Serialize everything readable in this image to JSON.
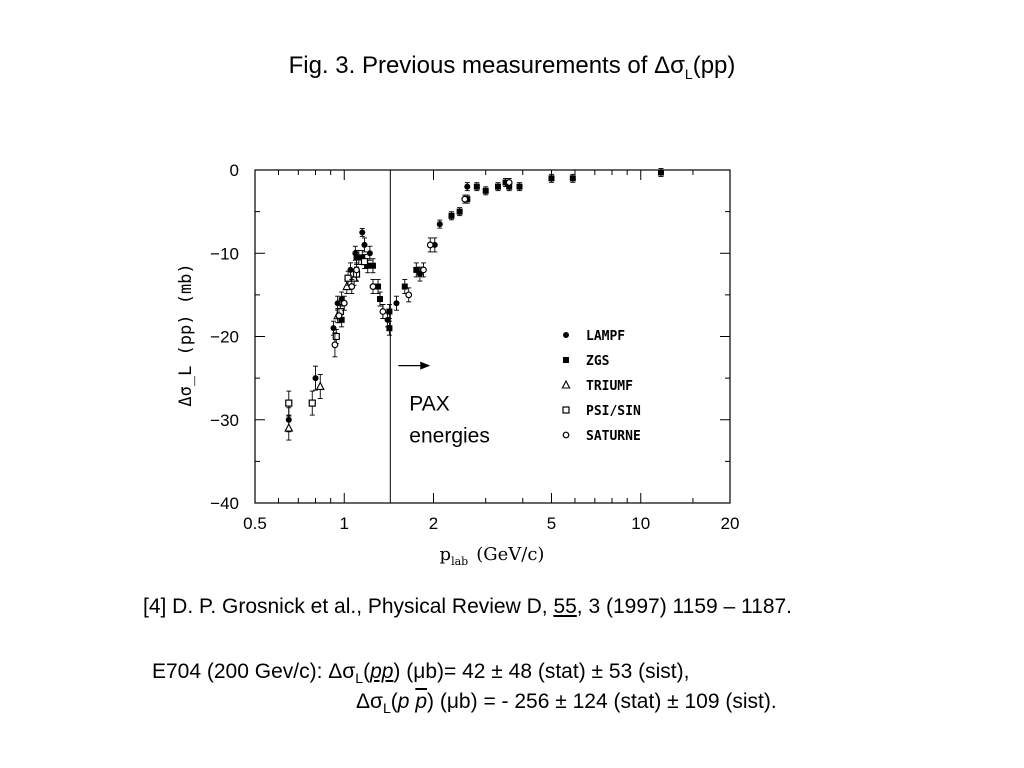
{
  "slide": {
    "title_prefix": "Fig. 3. Previous measurements of ",
    "title_symbol": "Δσ",
    "title_sub": "L",
    "title_suffix": "(pp)"
  },
  "chart_data": {
    "type": "scatter",
    "xscale": "log",
    "xlim": [
      0.5,
      20
    ],
    "ylim": [
      -40,
      0
    ],
    "xticks": [
      0.5,
      1,
      2,
      5,
      10,
      20
    ],
    "xtick_labels": [
      "0.5",
      "1",
      "2",
      "5",
      "10",
      "20"
    ],
    "yticks": [
      0,
      -10,
      -20,
      -30,
      -40
    ],
    "ytick_labels": [
      "0",
      "−10",
      "−20",
      "−30",
      "−40"
    ],
    "xlabel_main": "p",
    "xlabel_sub": "lab",
    "xlabel_unit": "(GeV/c)",
    "ylabel": "Δσ_L (pp)   (mb)",
    "grid": false,
    "legend_position": "right-inside",
    "annotation": {
      "x": 1.43,
      "arrow_to": 1.95,
      "arrow_y": -23.5,
      "line1": "PAX",
      "line2": "energies"
    },
    "series": [
      {
        "name": "LAMPF",
        "marker": "filled-circle",
        "points": [
          [
            0.65,
            -30
          ],
          [
            0.8,
            -25
          ],
          [
            0.92,
            -19
          ],
          [
            0.95,
            -16
          ],
          [
            0.98,
            -15.5
          ],
          [
            1.05,
            -12
          ],
          [
            1.09,
            -10
          ],
          [
            1.12,
            -10.5
          ],
          [
            1.15,
            -7.5
          ],
          [
            1.17,
            -9
          ],
          [
            1.22,
            -10
          ],
          [
            1.35,
            -17
          ],
          [
            1.4,
            -18
          ],
          [
            1.5,
            -16
          ],
          [
            1.8,
            -12.5
          ],
          [
            2.02,
            -9
          ],
          [
            2.1,
            -6.5
          ],
          [
            2.6,
            -2
          ]
        ]
      },
      {
        "name": "ZGS",
        "marker": "filled-square",
        "points": [
          [
            0.98,
            -18
          ],
          [
            1.1,
            -10.5
          ],
          [
            1.15,
            -10.5
          ],
          [
            1.2,
            -11.5
          ],
          [
            1.25,
            -11.5
          ],
          [
            1.3,
            -14
          ],
          [
            1.32,
            -15.5
          ],
          [
            1.42,
            -17
          ],
          [
            1.42,
            -19
          ],
          [
            1.6,
            -14
          ],
          [
            1.75,
            -12
          ],
          [
            2.3,
            -5.5
          ],
          [
            2.45,
            -5
          ],
          [
            2.6,
            -3.5
          ],
          [
            2.8,
            -2
          ],
          [
            3.0,
            -2.5
          ],
          [
            3.3,
            -2
          ],
          [
            3.5,
            -1.5
          ],
          [
            3.6,
            -2
          ],
          [
            3.9,
            -2
          ],
          [
            5.0,
            -1
          ],
          [
            5.9,
            -1
          ],
          [
            11.7,
            -0.3
          ]
        ]
      },
      {
        "name": "TRIUMF",
        "marker": "open-triangle",
        "points": [
          [
            0.65,
            -31
          ],
          [
            0.83,
            -26
          ],
          [
            0.95,
            -17.5
          ],
          [
            1.02,
            -14
          ],
          [
            1.08,
            -13
          ]
        ]
      },
      {
        "name": "PSI/SIN",
        "marker": "open-square",
        "points": [
          [
            0.65,
            -28
          ],
          [
            0.78,
            -28
          ],
          [
            0.94,
            -20
          ],
          [
            0.97,
            -17
          ],
          [
            1.03,
            -13
          ],
          [
            1.1,
            -12.5
          ],
          [
            1.17,
            -11
          ]
        ]
      },
      {
        "name": "SATURNE",
        "marker": "open-circle",
        "points": [
          [
            0.93,
            -21
          ],
          [
            0.96,
            -17.5
          ],
          [
            1.0,
            -16
          ],
          [
            1.06,
            -14
          ],
          [
            1.1,
            -12
          ],
          [
            1.25,
            -14
          ],
          [
            1.35,
            -17
          ],
          [
            1.65,
            -15
          ],
          [
            1.85,
            -12
          ],
          [
            1.95,
            -9
          ],
          [
            2.55,
            -3.5
          ],
          [
            3.6,
            -1.5
          ]
        ]
      }
    ]
  },
  "reference": {
    "prefix": "[4] D. P. Grosnick et al., Physical Review D, ",
    "volume": "55",
    "suffix": ", 3 (1997) 1159 – 1187."
  },
  "e704": {
    "line1_a": "E704 (200 Gev/c): ",
    "line1_sym": "Δσ",
    "line1_sub": "L",
    "line1_b": "(",
    "line1_pp": "pp",
    "line1_c": ") (μb)= 42 ± 48 (stat) ± 53 (sist),",
    "line2_sym": "Δσ",
    "line2_sub": "L",
    "line2_a": "(",
    "line2_p": "p",
    "line2_pbar": "p",
    "line2_b": ") (μb) = - 256 ± 124 (stat) ± 109 (sist)",
    "line2_end": "."
  }
}
